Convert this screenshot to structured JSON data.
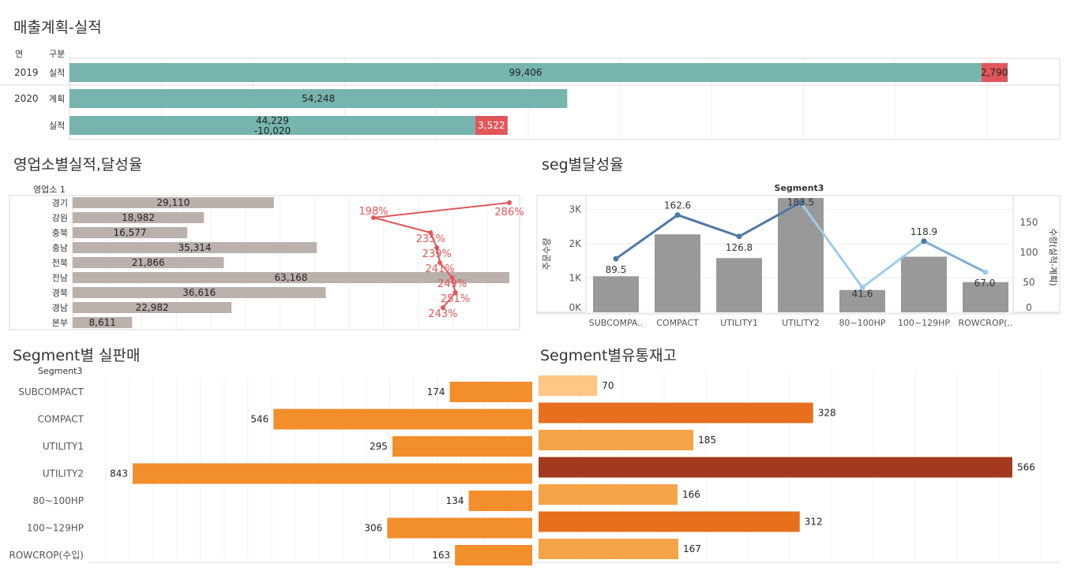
{
  "sales_plan": {
    "title": "매출계획-실적",
    "header_year": "연",
    "header_type": "구분",
    "rows": [
      {
        "year": "2019",
        "type": "실적",
        "main": 99406,
        "main_label": "99,406",
        "second": 2790,
        "second_label": "2,790",
        "third": 100,
        "sub_label": ""
      },
      {
        "year": "2020",
        "type": "계획",
        "main": 54248,
        "main_label": "54,248",
        "second": 0,
        "second_label": "",
        "third": 0,
        "sub_label": ""
      },
      {
        "year": "",
        "type": "실적",
        "main": 44229,
        "main_label": "44,229",
        "second": 3522,
        "second_label": "3,522",
        "third": 0,
        "sub_label": "-10,020"
      }
    ],
    "colors": {
      "main": "#76b5ae",
      "second": "#e15759",
      "third": "#4e79a7"
    }
  },
  "office": {
    "title": "영업소별실적,달성율",
    "header": "영업소 1",
    "colors": {
      "bar": "#bab0ac",
      "line": "#e15759"
    },
    "chart_data": {
      "type": "bar",
      "categories": [
        "경기",
        "강원",
        "충북",
        "충남",
        "전북",
        "전남",
        "경북",
        "경남",
        "본부"
      ],
      "values": [
        29110,
        18982,
        16577,
        35314,
        21866,
        63168,
        36616,
        22982,
        8611
      ],
      "value_labels": [
        "29,110",
        "18,982",
        "16,577",
        "35,314",
        "21,866",
        "63,168",
        "36,616",
        "22,982",
        "8,611"
      ],
      "rate_values": [
        286,
        198,
        235,
        239,
        241,
        249,
        251,
        243
      ],
      "rate_labels": [
        "286%",
        "198%",
        "235%",
        "239%",
        "241%",
        "249%",
        "251%",
        "243%"
      ]
    }
  },
  "seg_rate": {
    "title": "seg별달성율",
    "chart_title": "Segment3",
    "ylabel_left": "주문수량",
    "ylabel_right": "수량(실적-계획)",
    "left_ticks": [
      "3K",
      "2K",
      "1K",
      "0K"
    ],
    "right_ticks": [
      "150",
      "100",
      "50",
      "0"
    ],
    "colors": {
      "bar": "#999999",
      "line_dark": "#4e79a7",
      "line_light": "#a0cbe8"
    },
    "chart_data": {
      "type": "bar",
      "categories": [
        "SUBCOMPA..",
        "COMPACT",
        "UTILITY1",
        "UTILITY2",
        "80~100HP",
        "100~129HP",
        "ROWCROP(.."
      ],
      "bar_values": [
        1050,
        2270,
        1580,
        3330,
        650,
        1620,
        880
      ],
      "rate_values": [
        89.5,
        162.6,
        126.8,
        183.5,
        41.6,
        118.9,
        67.0
      ],
      "rate_labels": [
        "89.5",
        "162.6",
        "126.8",
        "183.5",
        "41.6",
        "118.9",
        "67.0"
      ],
      "ylim_left": [
        0,
        3400
      ],
      "ylim_right": [
        0,
        195
      ]
    }
  },
  "seg_sales": {
    "title": "Segment별 실판매",
    "header": "Segment3",
    "color": "#f28e2b",
    "chart_data": {
      "type": "bar",
      "categories": [
        "SUBCOMPACT",
        "COMPACT",
        "UTILITY1",
        "UTILITY2",
        "80~100HP",
        "100~129HP",
        "ROWCROP(수입)"
      ],
      "values": [
        174,
        546,
        295,
        843,
        134,
        306,
        163
      ]
    }
  },
  "seg_stock": {
    "title": "Segment별유통재고",
    "chart_data": {
      "type": "bar",
      "categories": [
        "SUBCOMPACT",
        "COMPACT",
        "UTILITY1",
        "UTILITY2",
        "80~100HP",
        "100~129HP",
        "ROWCROP(수입)"
      ],
      "values": [
        70,
        328,
        185,
        566,
        166,
        312,
        167
      ],
      "colors": [
        "#ffc685",
        "#e86f1e",
        "#f5a447",
        "#a33a1f",
        "#f5a447",
        "#e86f1e",
        "#f5a447"
      ]
    }
  }
}
